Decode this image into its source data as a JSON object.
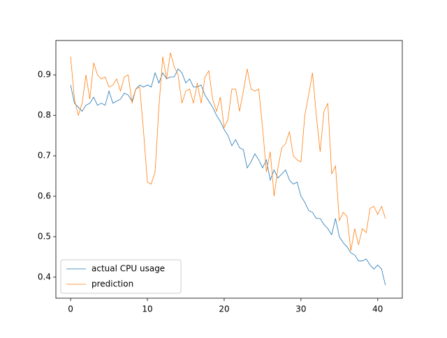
{
  "chart_data": {
    "type": "line",
    "x": [
      0,
      0.5,
      1,
      1.5,
      2,
      2.5,
      3,
      3.5,
      4,
      4.5,
      5,
      5.5,
      6,
      6.5,
      7,
      7.5,
      8,
      8.5,
      9,
      9.5,
      10,
      10.5,
      11,
      11.5,
      12,
      12.5,
      13,
      13.5,
      14,
      14.5,
      15,
      15.5,
      16,
      16.5,
      17,
      17.5,
      18,
      18.5,
      19,
      19.5,
      20,
      20.5,
      21,
      21.5,
      22,
      22.5,
      23,
      23.5,
      24,
      24.5,
      25,
      25.5,
      26,
      26.5,
      27,
      27.5,
      28,
      28.5,
      29,
      29.5,
      30,
      30.5,
      31,
      31.5,
      32,
      32.5,
      33,
      33.5,
      34,
      34.5,
      35,
      35.5,
      36,
      36.5,
      37,
      37.5,
      38,
      38.5,
      39,
      39.5,
      40,
      40.5,
      41
    ],
    "series": [
      {
        "name": "actual CPU usage",
        "color": "#1f77b4",
        "values": [
          0.875,
          0.83,
          0.82,
          0.81,
          0.825,
          0.83,
          0.845,
          0.825,
          0.83,
          0.825,
          0.86,
          0.83,
          0.835,
          0.84,
          0.855,
          0.85,
          0.835,
          0.865,
          0.875,
          0.87,
          0.875,
          0.87,
          0.905,
          0.88,
          0.905,
          0.89,
          0.895,
          0.895,
          0.915,
          0.905,
          0.88,
          0.89,
          0.87,
          0.87,
          0.875,
          0.85,
          0.835,
          0.82,
          0.8,
          0.785,
          0.765,
          0.75,
          0.725,
          0.74,
          0.72,
          0.715,
          0.67,
          0.685,
          0.705,
          0.69,
          0.67,
          0.69,
          0.64,
          0.665,
          0.645,
          0.655,
          0.665,
          0.64,
          0.63,
          0.635,
          0.6,
          0.585,
          0.565,
          0.56,
          0.545,
          0.545,
          0.53,
          0.52,
          0.505,
          0.545,
          0.5,
          0.485,
          0.475,
          0.46,
          0.455,
          0.44,
          0.44,
          0.445,
          0.43,
          0.42,
          0.43,
          0.42,
          0.38
        ]
      },
      {
        "name": "prediction",
        "color": "#ff7f0e",
        "values": [
          0.945,
          0.84,
          0.8,
          0.83,
          0.9,
          0.84,
          0.93,
          0.9,
          0.89,
          0.895,
          0.87,
          0.875,
          0.89,
          0.86,
          0.895,
          0.9,
          0.83,
          0.865,
          0.87,
          0.76,
          0.635,
          0.63,
          0.66,
          0.82,
          0.945,
          0.89,
          0.955,
          0.92,
          0.9,
          0.83,
          0.86,
          0.865,
          0.83,
          0.88,
          0.83,
          0.895,
          0.91,
          0.84,
          0.81,
          0.845,
          0.77,
          0.79,
          0.865,
          0.865,
          0.81,
          0.86,
          0.915,
          0.865,
          0.86,
          0.865,
          0.77,
          0.66,
          0.71,
          0.6,
          0.67,
          0.72,
          0.73,
          0.76,
          0.7,
          0.69,
          0.685,
          0.8,
          0.85,
          0.905,
          0.8,
          0.71,
          0.81,
          0.83,
          0.655,
          0.675,
          0.54,
          0.56,
          0.55,
          0.465,
          0.52,
          0.48,
          0.52,
          0.51,
          0.57,
          0.575,
          0.555,
          0.575,
          0.545
        ]
      }
    ],
    "xlim": [
      -1.92,
      43.2
    ],
    "ylim": [
      0.348,
      0.985
    ],
    "xticks": [
      0,
      10,
      20,
      30,
      40
    ],
    "yticks": [
      0.4,
      0.5,
      0.6,
      0.7,
      0.8,
      0.9
    ],
    "grid": false,
    "legend": "lower left"
  }
}
